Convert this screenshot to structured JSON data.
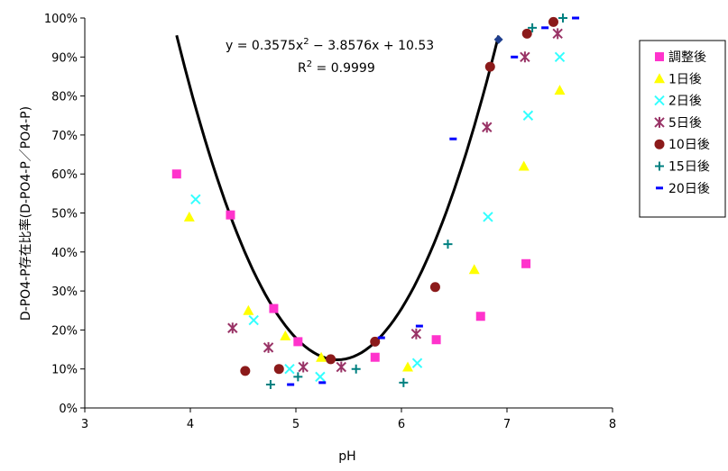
{
  "chart_data": {
    "type": "scatter",
    "xlabel": "pH",
    "ylabel": "D-PO4-P存在比率(D-PO4-P／PO4-P)",
    "xlim": [
      3,
      8
    ],
    "ylim": [
      0,
      100
    ],
    "x_ticks": [
      "3",
      "4",
      "5",
      "6",
      "7",
      "8"
    ],
    "y_ticks": [
      "0%",
      "10%",
      "20%",
      "30%",
      "40%",
      "50%",
      "60%",
      "70%",
      "80%",
      "90%",
      "100%"
    ],
    "grid": "none",
    "legend_position": "right",
    "series": [
      {
        "name": "調整後",
        "marker": "square",
        "color": "#FF33CC",
        "x": [
          3.87,
          4.38,
          4.79,
          5.02,
          5.75,
          6.33,
          6.75,
          7.18
        ],
        "y": [
          60,
          49.5,
          25.5,
          17,
          13,
          17.5,
          23.5,
          37
        ]
      },
      {
        "name": "1日後",
        "marker": "triangle",
        "color": "#FFFF00",
        "x": [
          3.99,
          4.55,
          4.9,
          5.24,
          6.06,
          6.69,
          7.16,
          7.5
        ],
        "y": [
          49,
          25,
          18.5,
          13,
          10.5,
          35.5,
          62,
          81.5
        ]
      },
      {
        "name": "2日後",
        "marker": "x",
        "color": "#33FFFF",
        "x": [
          4.05,
          4.6,
          4.94,
          5.23,
          6.15,
          6.82,
          7.2,
          7.5
        ],
        "y": [
          53.5,
          22.5,
          10,
          8,
          11.5,
          49,
          75,
          90
        ]
      },
      {
        "name": "5日後",
        "marker": "asterisk",
        "color": "#993366",
        "x": [
          4.4,
          4.74,
          5.07,
          5.43,
          6.14,
          6.81,
          7.17,
          7.48
        ],
        "y": [
          20.5,
          15.5,
          10.5,
          10.5,
          19,
          72,
          90,
          96
        ]
      },
      {
        "name": "10日後",
        "marker": "circle",
        "color": "#8B1A1A",
        "x": [
          4.52,
          4.84,
          5.33,
          5.75,
          6.32,
          6.84,
          7.19,
          7.44
        ],
        "y": [
          9.5,
          10,
          12.5,
          17,
          31,
          87.5,
          96,
          99
        ]
      },
      {
        "name": "15日後",
        "marker": "plus",
        "color": "#008080",
        "x": [
          4.76,
          5.02,
          5.57,
          6.02,
          6.44,
          7.24,
          7.53
        ],
        "y": [
          6,
          8,
          10,
          6.5,
          42,
          97.5,
          100
        ]
      },
      {
        "name": "20日後",
        "marker": "dash",
        "color": "#0000FF",
        "x": [
          4.95,
          5.25,
          5.81,
          6.17,
          6.49,
          7.07,
          7.36,
          7.65
        ],
        "y": [
          6,
          6.5,
          18,
          21,
          69,
          90,
          97.5,
          100
        ]
      }
    ],
    "trendline": {
      "equation": "y = 0.3575x",
      "equation_tail": " − 3.8576x + 10.53",
      "r2_label": "R",
      "r2_value": " = 0.9999",
      "superscript": "2",
      "coefficients": [
        0.3575,
        -3.8576,
        10.53
      ],
      "x_range": [
        3.87,
        6.92
      ],
      "color": "#000000"
    },
    "extra_points": [
      {
        "x": 6.92,
        "y": 94.5,
        "marker": "diamond",
        "color": "#1F3F8F"
      }
    ]
  }
}
